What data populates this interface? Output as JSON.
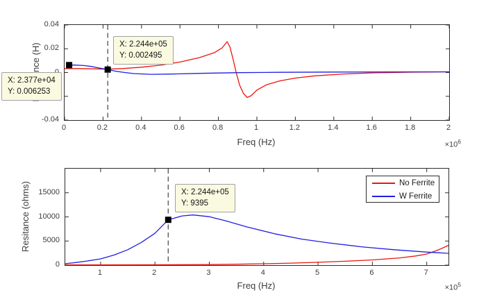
{
  "figure": {
    "background": "#ffffff"
  },
  "colors": {
    "no_ferrite": "#ea150d",
    "w_ferrite": "#1f1fe0",
    "axis": "#2b2b2b",
    "tick_label": "#3c3c3c",
    "cursor_line": "#4f4f4f",
    "marker": "#000000",
    "datatip_bg": "#fafae1",
    "datatip_border": "#a0a0a0",
    "legend_border": "#2b2b2b"
  },
  "chart_data": [
    {
      "type": "line",
      "title": "",
      "xlabel": "Freq (Hz)",
      "ylabel": "Inductance (H)",
      "x_exponent": {
        "base": "×10",
        "exp": "6"
      },
      "xlim": [
        0,
        2000000
      ],
      "ylim": [
        -0.04,
        0.04
      ],
      "grid": false,
      "xticks": {
        "values": [
          0,
          200000,
          400000,
          600000,
          800000,
          1000000,
          1200000,
          1400000,
          1600000,
          1800000,
          2000000
        ],
        "labels": [
          "0",
          "0.2",
          "0.4",
          "0.6",
          "0.8",
          "1",
          "1.2",
          "1.4",
          "1.6",
          "1.8",
          "2"
        ]
      },
      "yticks": {
        "values": [
          -0.04,
          -0.02,
          0,
          0.02,
          0.04
        ],
        "labels": [
          "-0.04",
          "-0.02",
          "0",
          "0.02",
          "0.04"
        ]
      },
      "cursor_x": 224400,
      "series": [
        {
          "name": "No Ferrite",
          "color_key": "no_ferrite",
          "x": [
            0,
            80000,
            150000,
            224400,
            300000,
            400000,
            500000,
            600000,
            700000,
            780000,
            820000,
            845000,
            860000,
            875000,
            892500,
            910000,
            930000,
            950000,
            970000,
            1000000,
            1050000,
            1120000,
            1200000,
            1300000,
            1450000,
            1600000,
            1800000,
            2000000
          ],
          "y": [
            0.0033,
            0.0033,
            0.0031,
            0.0028,
            0.0033,
            0.0045,
            0.0062,
            0.0088,
            0.0125,
            0.0168,
            0.0208,
            0.026,
            0.0215,
            0.012,
            0,
            -0.0105,
            -0.0175,
            -0.021,
            -0.0195,
            -0.0148,
            -0.0103,
            -0.007,
            -0.0047,
            -0.0028,
            -0.0012,
            -0.0003,
            0.0003,
            0.0006
          ]
        },
        {
          "name": "W Ferrite",
          "color_key": "w_ferrite",
          "x": [
            18000,
            50000,
            100000,
            140000,
            180000,
            224400,
            260000,
            300000,
            360000,
            450000,
            550000,
            700000,
            900000,
            1100000,
            1400000,
            1700000,
            2000000
          ],
          "y": [
            0.0061,
            0.0063,
            0.0059,
            0.0051,
            0.0038,
            0.0025,
            0.0013,
            0.0003,
            -0.0009,
            -0.0015,
            -0.0013,
            -0.0007,
            -0.0001,
            0.0002,
            0.0004,
            0.0005,
            0.0006
          ]
        }
      ],
      "datatips": [
        {
          "id": "tip-a",
          "lines": [
            "X: 2.377e+04",
            "Y: 0.006253"
          ],
          "anchor": {
            "x": 23770,
            "y": 0.006253
          }
        },
        {
          "id": "tip-b",
          "lines": [
            "X: 2.244e+05",
            "Y: 0.002495"
          ],
          "anchor": {
            "x": 224400,
            "y": 0.002495
          }
        }
      ]
    },
    {
      "type": "line",
      "title": "",
      "xlabel": "Freq (Hz)",
      "ylabel": "Resitance (ohms)",
      "x_exponent": {
        "base": "×10",
        "exp": "5"
      },
      "xlim": [
        35000,
        740000
      ],
      "ylim": [
        0,
        20000
      ],
      "grid": false,
      "xticks": {
        "values": [
          100000,
          200000,
          300000,
          400000,
          500000,
          600000,
          700000
        ],
        "labels": [
          "1",
          "2",
          "3",
          "4",
          "5",
          "6",
          "7"
        ]
      },
      "yticks": {
        "values": [
          0,
          5000,
          10000,
          15000
        ],
        "labels": [
          "0",
          "5000",
          "10000",
          "15000"
        ]
      },
      "cursor_x": 224400,
      "legend": {
        "position": "northeast",
        "entries": [
          "No Ferrite",
          "W Ferrite"
        ]
      },
      "series": [
        {
          "name": "No Ferrite",
          "color_key": "no_ferrite",
          "x": [
            35000,
            100000,
            200000,
            300000,
            350000,
            400000,
            450000,
            500000,
            550000,
            600000,
            650000,
            680000,
            700000,
            720000,
            740000
          ],
          "y": [
            50,
            55,
            70,
            120,
            190,
            290,
            420,
            590,
            800,
            1080,
            1500,
            1900,
            2300,
            3100,
            4100
          ]
        },
        {
          "name": "W Ferrite",
          "color_key": "w_ferrite",
          "x": [
            35000,
            50000,
            75000,
            100000,
            125000,
            150000,
            175000,
            200000,
            224400,
            250000,
            270000,
            300000,
            330000,
            370000,
            420000,
            470000,
            520000,
            580000,
            640000,
            700000,
            740000
          ],
          "y": [
            300,
            480,
            850,
            1300,
            2100,
            3200,
            4700,
            6600,
            9395,
            10200,
            10400,
            10050,
            9200,
            7900,
            6500,
            5400,
            4600,
            3800,
            3200,
            2700,
            2450
          ]
        }
      ],
      "datatips": [
        {
          "id": "tip-c",
          "lines": [
            "X: 2.244e+05",
            "Y: 9395"
          ],
          "anchor": {
            "x": 224400,
            "y": 9395
          }
        }
      ]
    }
  ]
}
